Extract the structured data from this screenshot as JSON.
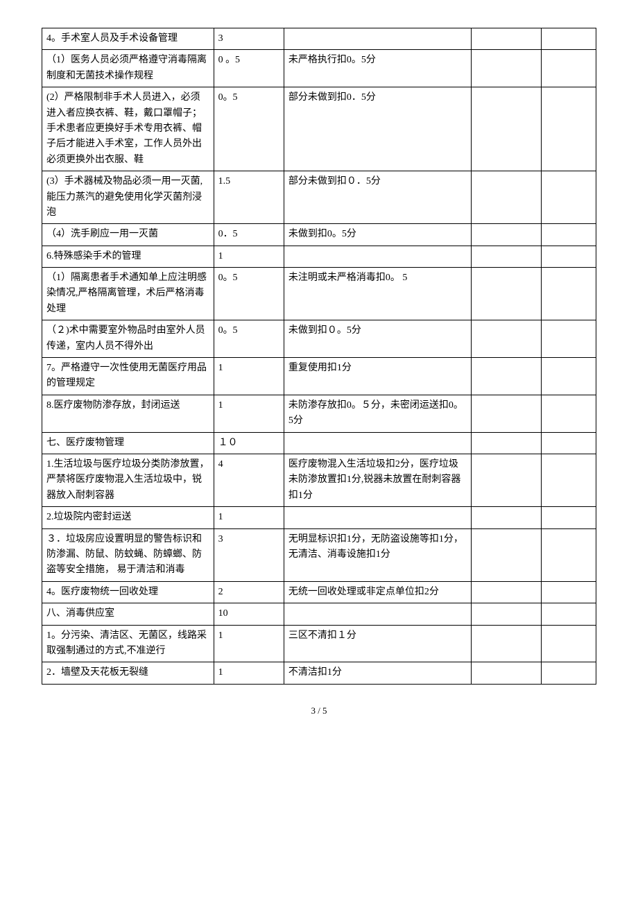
{
  "rows": [
    {
      "c1": "4。手术室人员及手术设备管理",
      "c2": "3",
      "c3": "",
      "c4": "",
      "c5": ""
    },
    {
      "c1": "（1）医务人员必须严格遵守消毒隔离制度和无菌技术操作规程",
      "c2": "0 。5",
      "c3": "未严格执行扣0。5分",
      "c4": "",
      "c5": ""
    },
    {
      "c1": "(2）严格限制非手术人员进入，必须进入者应换衣裤、鞋，戴口罩帽子；手术患者应更换好手术专用衣裤、帽子后才能进入手术室，工作人员外出必须更换外出衣服、鞋",
      "c2": "0。5",
      "c3": "部分未做到扣0．5分",
      "c4": "",
      "c5": ""
    },
    {
      "c1": "(3）手术器械及物品必须一用一灭菌,能压力蒸汽的避免使用化学灭菌剂浸泡",
      "c2": "1.5",
      "c3": "部分未做到扣０．5分",
      "c4": "",
      "c5": ""
    },
    {
      "c1": "（4）洗手刷应一用一灭菌",
      "c2": "0．5",
      "c3": "未做到扣0。5分",
      "c4": "",
      "c5": ""
    },
    {
      "c1": "6.特殊感染手术的管理",
      "c2": "1",
      "c3": "",
      "c4": "",
      "c5": ""
    },
    {
      "c1": "（1）隔离患者手术通知单上应注明感染情况,严格隔离管理，术后严格消毒处理",
      "c2": "0。5",
      "c3": "未注明或未严格消毒扣0。 5",
      "c4": "",
      "c5": ""
    },
    {
      "c1": "（２)术中需要室外物品时由室外人员传递，室内人员不得外出",
      "c2": "0。5",
      "c3": "未做到扣０。5分",
      "c4": "",
      "c5": ""
    },
    {
      "c1": "7。严格遵守一次性使用无菌医疗用品的管理规定",
      "c2": "1",
      "c3": "重复使用扣1分",
      "c4": "",
      "c5": ""
    },
    {
      "c1": "8.医疗废物防渗存放，封闭运送",
      "c2": "1",
      "c3": "未防渗存放扣0。５分，未密闭运送扣0。5分",
      "c4": "",
      "c5": ""
    },
    {
      "c1": "七、医疗废物管理",
      "c2": "１０",
      "c3": "",
      "c4": "",
      "c5": ""
    },
    {
      "c1": "1.生活垃圾与医疗垃圾分类防渗放置，严禁将医疗废物混入生活垃圾中，锐器放入耐刺容器",
      "c2": "4",
      "c3": "医疗废物混入生活垃圾扣2分，医疗垃圾未防渗放置扣1分,锐器未放置在耐刺容器扣1分",
      "c4": "",
      "c5": ""
    },
    {
      "c1": "2.垃圾院内密封运送",
      "c2": "1",
      "c3": "",
      "c4": "",
      "c5": ""
    },
    {
      "c1": "３．垃圾房应设置明显的警告标识和防渗漏、防鼠、防蚊蝇、防蟑螂、防盗等安全措施， 易于清洁和消毒",
      "c2": "3",
      "c3": "无明显标识扣1分，无防盗设施等扣1分，无清洁、消毒设施扣1分",
      "c4": "",
      "c5": ""
    },
    {
      "c1": "4。医疗废物统一回收处理",
      "c2": "2",
      "c3": "无统一回收处理或非定点单位扣2分",
      "c4": "",
      "c5": ""
    },
    {
      "c1": "八、消毒供应室",
      "c2": "10",
      "c3": "",
      "c4": "",
      "c5": ""
    },
    {
      "c1": "1。分污染、清洁区、无菌区，线路采取强制通过的方式,不准逆行",
      "c2": "1",
      "c3": "三区不清扣１分",
      "c4": "",
      "c5": ""
    },
    {
      "c1": "2．墙壁及天花板无裂缝",
      "c2": "1",
      "c3": "不清洁扣1分",
      "c4": "",
      "c5": ""
    }
  ],
  "footer": "3 / 5"
}
